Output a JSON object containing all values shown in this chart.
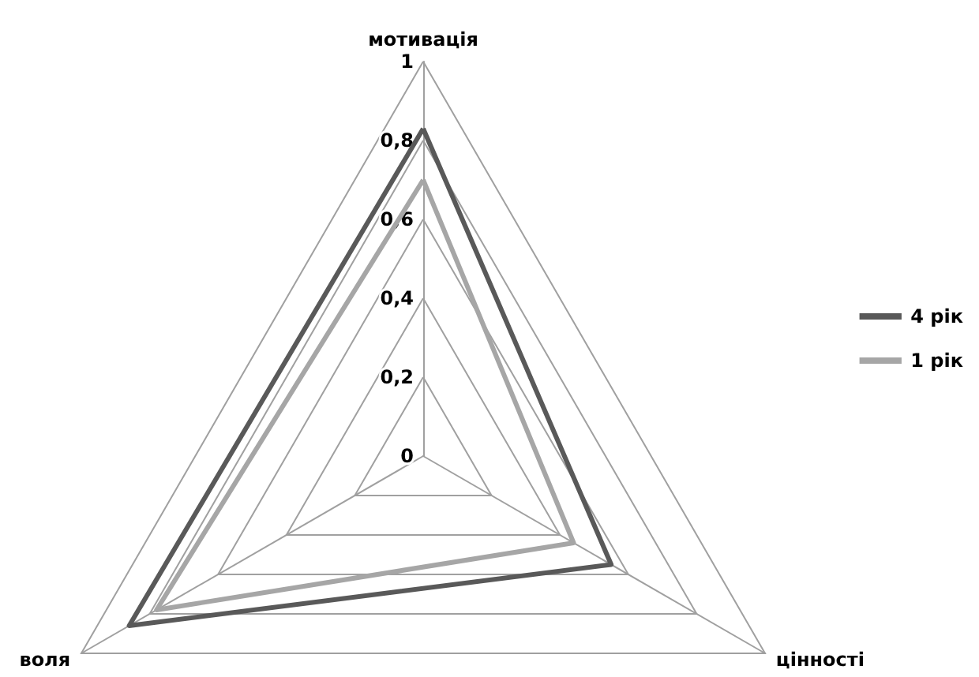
{
  "chart_data": {
    "type": "radar",
    "categories": [
      "мотивація",
      "цінності",
      "воля"
    ],
    "series": [
      {
        "name": "4 рік",
        "color": "#595959",
        "values": [
          0.83,
          0.55,
          0.86
        ]
      },
      {
        "name": "1 рік",
        "color": "#a6a6a6",
        "values": [
          0.7,
          0.44,
          0.78
        ]
      }
    ],
    "ylim": [
      0,
      1
    ],
    "yticks": [
      {
        "value": 0,
        "label": "0"
      },
      {
        "value": 0.2,
        "label": "0,2"
      },
      {
        "value": 0.4,
        "label": "0,4"
      },
      {
        "value": 0.6,
        "label": "0,6"
      },
      {
        "value": 0.8,
        "label": "0,8"
      },
      1
    ],
    "grid": true,
    "legend": "right",
    "marker": "none",
    "line_style": "solid"
  }
}
